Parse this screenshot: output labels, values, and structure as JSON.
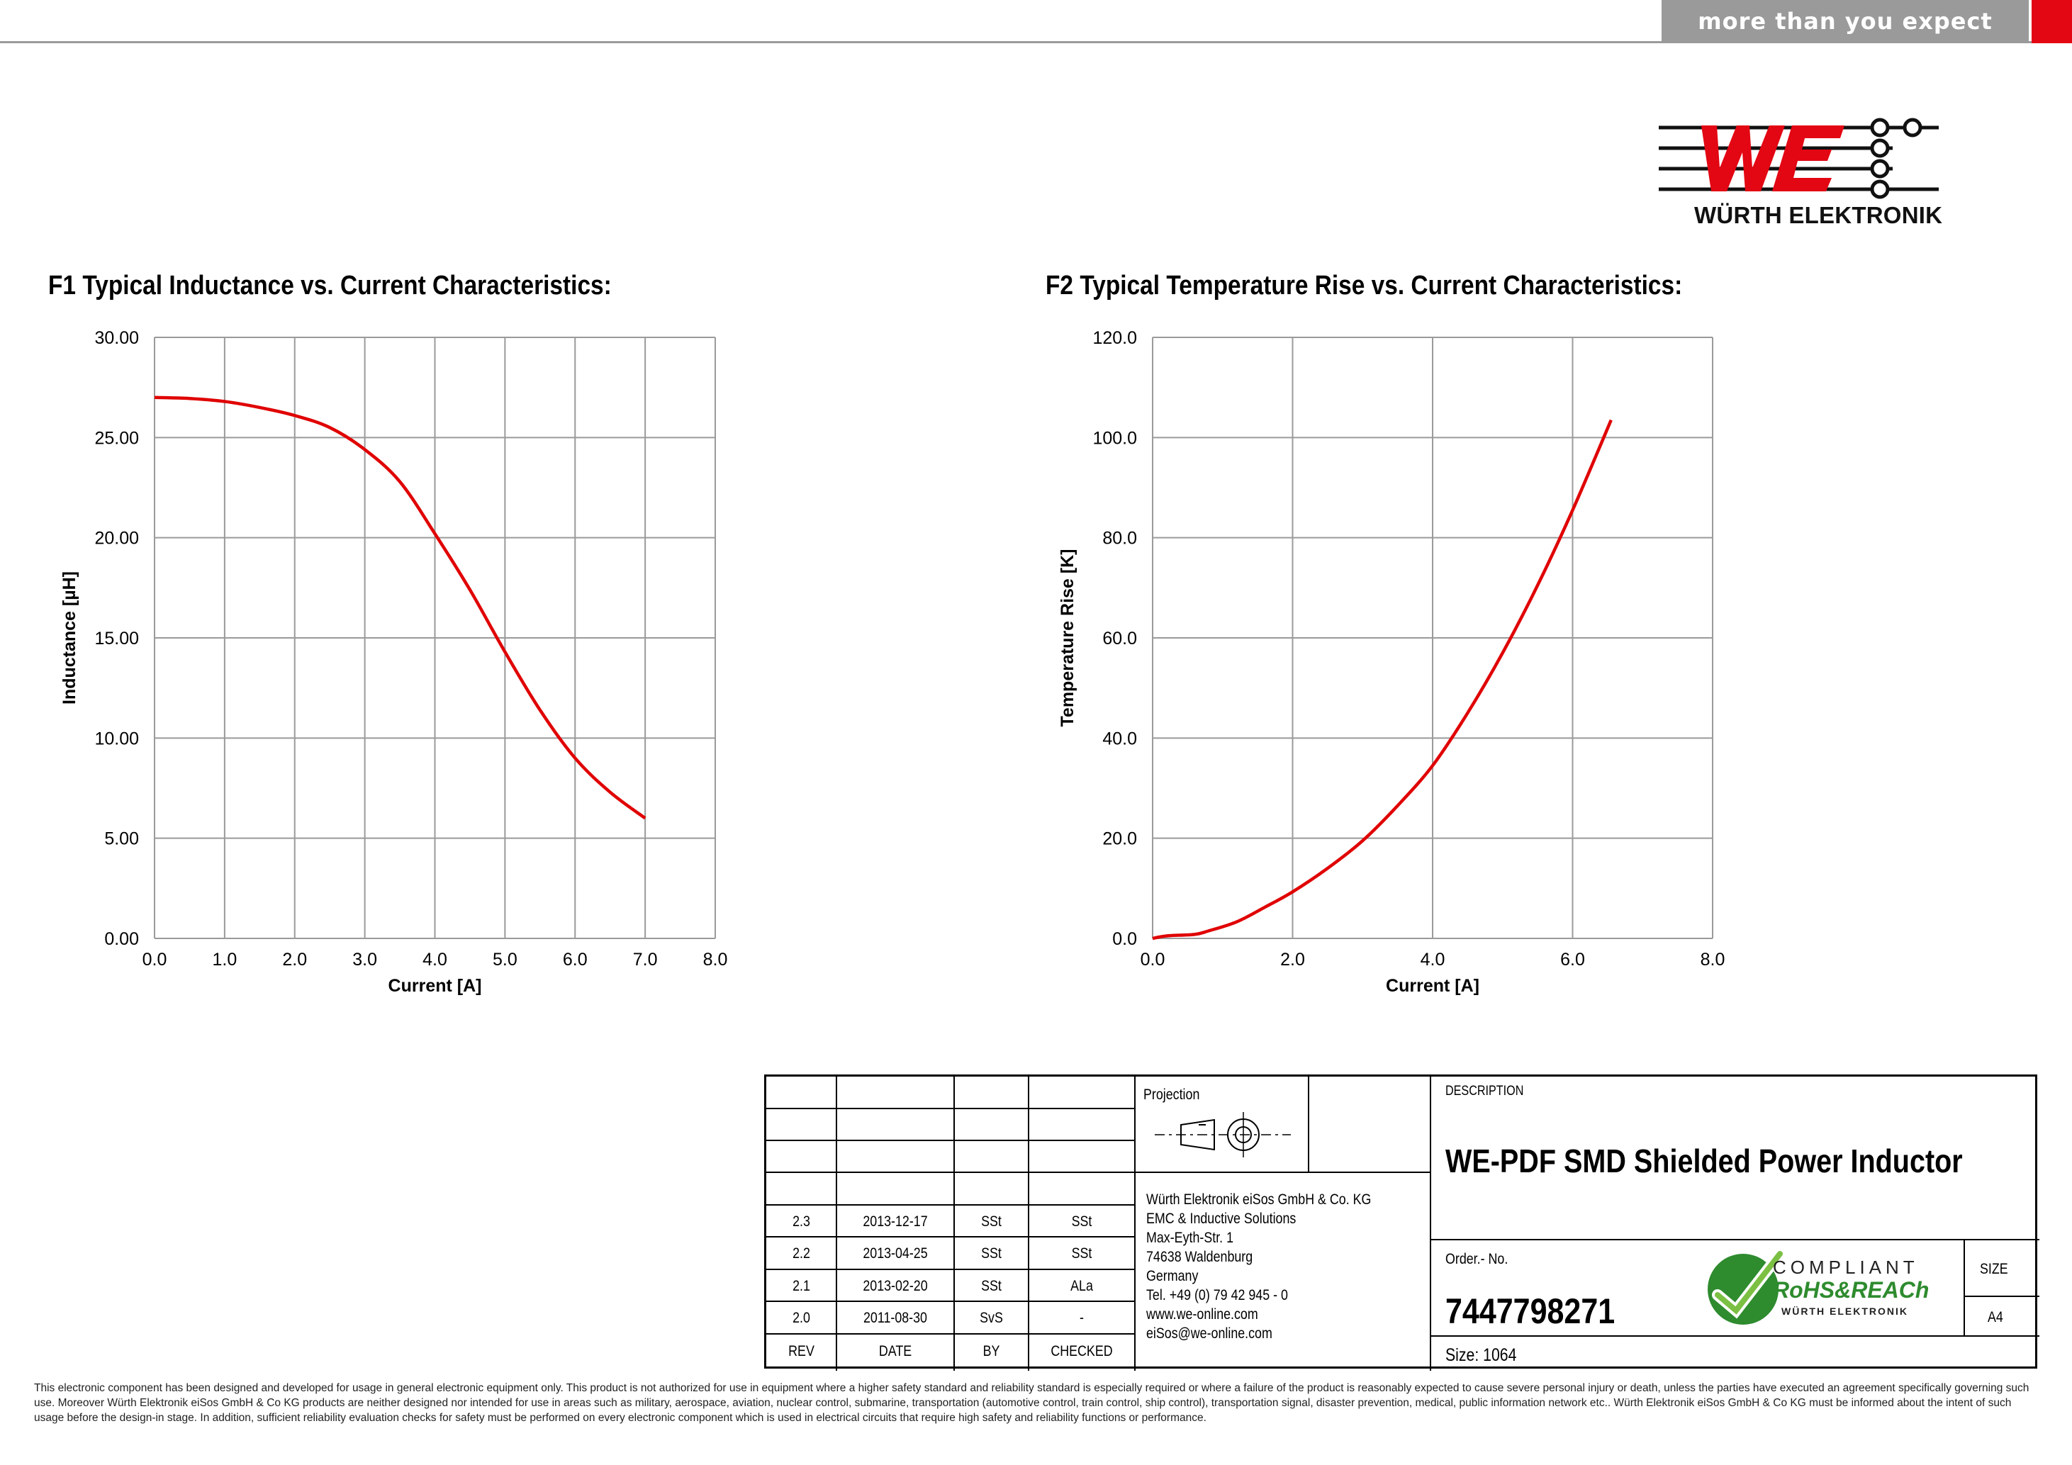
{
  "header": {
    "tagline": "more than you expect",
    "brand_color": "#e30613",
    "bar_color": "#9a9a9a",
    "logo_text": "WÜRTH ELEKTRONIK"
  },
  "chart1": {
    "title": "F1 Typical Inductance vs. Current Characteristics:",
    "chart_data": {
      "type": "line",
      "xlabel": "Current [A]",
      "ylabel": "Inductance [µH]",
      "xlim": [
        0,
        8
      ],
      "ylim": [
        0,
        30
      ],
      "x_ticks": [
        "0.0",
        "1.0",
        "2.0",
        "3.0",
        "4.0",
        "5.0",
        "6.0",
        "7.0",
        "8.0"
      ],
      "y_ticks": [
        "0.00",
        "5.00",
        "10.00",
        "15.00",
        "20.00",
        "25.00",
        "30.00"
      ],
      "grid": true,
      "color": "#e00000",
      "series": [
        {
          "x": [
            0,
            0.5,
            1.0,
            1.5,
            2.0,
            2.5,
            3.0,
            3.5,
            4.0,
            4.5,
            5.0,
            5.5,
            6.0,
            6.5,
            7.0
          ],
          "y": [
            27.0,
            26.95,
            26.8,
            26.5,
            26.1,
            25.5,
            24.4,
            22.8,
            20.2,
            17.4,
            14.3,
            11.4,
            9.0,
            7.3,
            6.0
          ]
        }
      ]
    }
  },
  "chart2": {
    "title": "F2 Typical Temperature Rise vs. Current Characteristics:",
    "chart_data": {
      "type": "line",
      "xlabel": "Current [A]",
      "ylabel": "Temperature Rise [K]",
      "xlim": [
        0,
        8
      ],
      "ylim": [
        0,
        120
      ],
      "x_ticks": [
        "0.0",
        "2.0",
        "4.0",
        "6.0",
        "8.0"
      ],
      "y_ticks": [
        "0.0",
        "20.0",
        "40.0",
        "60.0",
        "80.0",
        "100.0",
        "120.0"
      ],
      "grid": true,
      "color": "#e00000",
      "series": [
        {
          "x": [
            0,
            0.2,
            0.6,
            0.8,
            1.2,
            1.6,
            2.0,
            2.5,
            3.0,
            3.5,
            4.0,
            4.5,
            5.0,
            5.5,
            6.0,
            6.55
          ],
          "y": [
            0,
            0.5,
            0.8,
            1.5,
            3.3,
            6.2,
            9.3,
            14.0,
            19.5,
            26.5,
            34.5,
            45.0,
            57.0,
            70.5,
            85.5,
            103.5
          ]
        }
      ]
    }
  },
  "title_block": {
    "projection_label": "Projection",
    "revisions": [
      {
        "rev": "2.3",
        "date": "2013-12-17",
        "by": "SSt",
        "checked": "SSt"
      },
      {
        "rev": "2.2",
        "date": "2013-04-25",
        "by": "SSt",
        "checked": "SSt"
      },
      {
        "rev": "2.1",
        "date": "2013-02-20",
        "by": "SSt",
        "checked": "ALa"
      },
      {
        "rev": "2.0",
        "date": "2011-08-30",
        "by": "SvS",
        "checked": "-"
      }
    ],
    "headers": {
      "rev": "REV",
      "date": "DATE",
      "by": "BY",
      "checked": "CHECKED"
    },
    "company": [
      "Würth Elektronik eiSos GmbH & Co. KG",
      "EMC & Inductive Solutions",
      "Max-Eyth-Str. 1",
      "74638 Waldenburg",
      "Germany",
      "Tel. +49 (0) 79 42 945 - 0",
      "www.we-online.com",
      "eiSos@we-online.com"
    ],
    "description_label": "DESCRIPTION",
    "description": "WE-PDF SMD Shielded Power Inductor",
    "order_label": "Order.- No.",
    "order_no": "7447798271",
    "size_label": "SIZE",
    "size_value": "A4",
    "size_text": "Size: 1064",
    "badge": {
      "line1": "COMPLIANT",
      "line2": "RoHS&REACh",
      "line3": "WÜRTH ELEKTRONIK"
    }
  },
  "disclaimer": "This electronic component has been designed and developed for usage in general electronic equipment only. This product is not authorized for use in equipment where a higher safety standard and reliability standard is especially required or where a failure of the product is reasonably expected to cause severe personal injury or death, unless the parties have executed an agreement specifically governing such use. Moreover Würth Elektronik eiSos GmbH & Co KG products are neither designed nor intended for use in areas such as military, aerospace, aviation, nuclear control, submarine, transportation (automotive control, train control, ship control), transportation signal, disaster prevention, medical, public information network etc.. Würth Elektronik eiSos GmbH & Co KG must be informed about the intent of such usage before the design-in stage. In addition, sufficient reliability evaluation checks for safety must be performed on every electronic component which is used in electrical circuits that require high safety and reliability functions or performance."
}
